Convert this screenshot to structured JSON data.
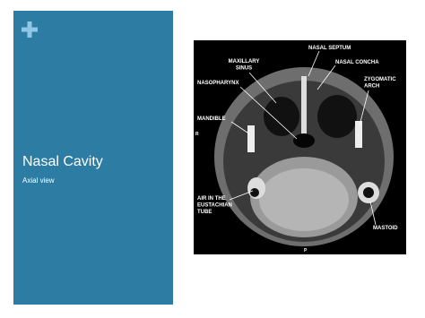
{
  "slide": {
    "title": "Nasal Cavity",
    "subtitle": "Axial view"
  },
  "image": {
    "labels": [
      {
        "lines": [
          "NASAL SEPTUM"
        ]
      },
      {
        "lines": [
          "MAXILLARY",
          "SINUS"
        ]
      },
      {
        "lines": [
          "NASAL CONCHA"
        ]
      },
      {
        "lines": [
          "NASOPHARYNX"
        ]
      },
      {
        "lines": [
          "ZYGOMATIC",
          "ARCH"
        ]
      },
      {
        "lines": [
          "MANDIBLE"
        ]
      },
      {
        "lines": [
          "AIR IN THE",
          "EUSTACHIAN",
          "TUBE"
        ]
      },
      {
        "lines": [
          "MASTOID"
        ]
      }
    ],
    "orientation": [
      "R",
      "P"
    ]
  }
}
